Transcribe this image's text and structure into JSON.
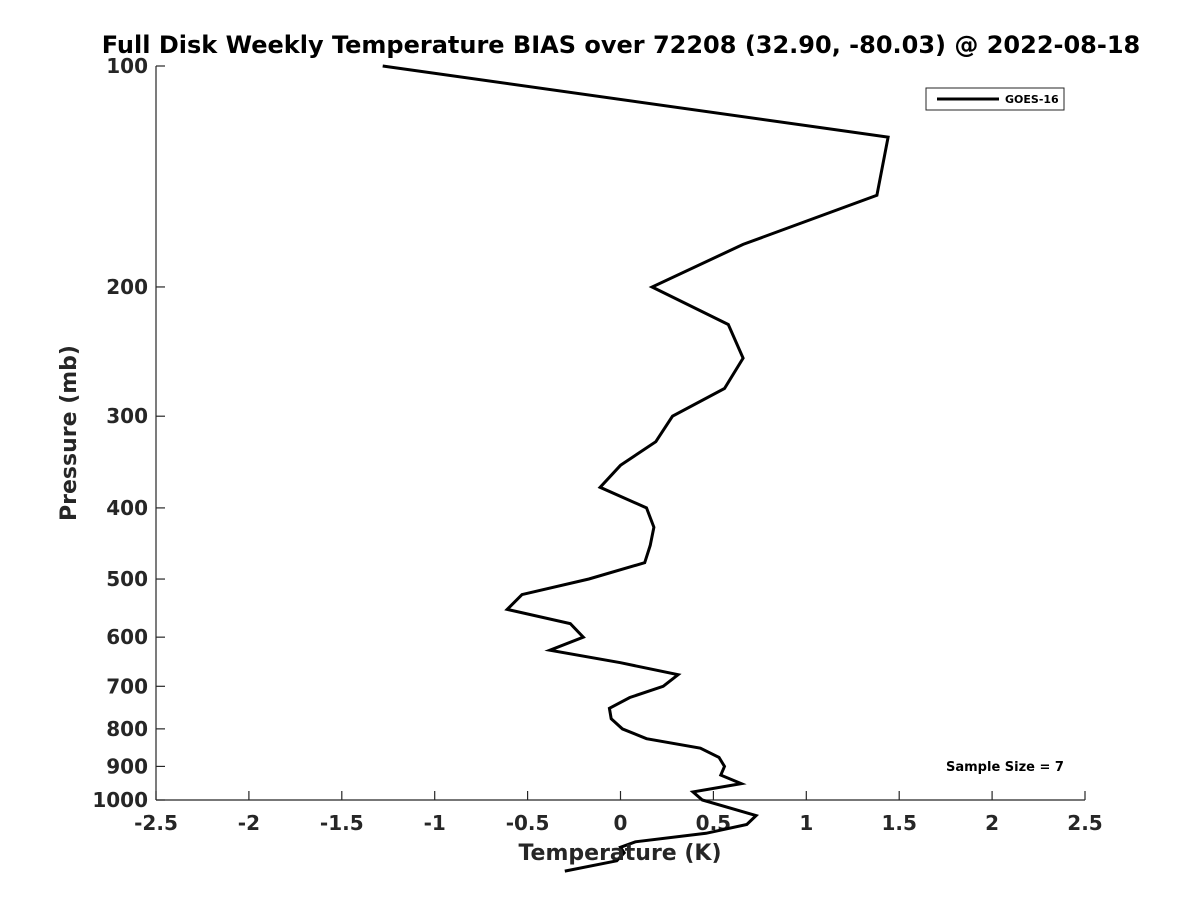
{
  "chart_data": {
    "type": "line",
    "title": "Full Disk Weekly Temperature BIAS over 72208 (32.90, -80.03) @ 2022-08-18",
    "xlabel": "Temperature (K)",
    "ylabel": "Pressure (mb)",
    "xlim": [
      -2.5,
      2.5
    ],
    "ylim": [
      100,
      1000
    ],
    "y_scale": "log",
    "y_reversed": true,
    "x_ticks": [
      "-2.5",
      "-2",
      "-1.5",
      "-1",
      "-0.5",
      "0",
      "0.5",
      "1",
      "1.5",
      "2",
      "2.5"
    ],
    "x_tick_values": [
      -2.5,
      -2,
      -1.5,
      -1,
      -0.5,
      0,
      0.5,
      1,
      1.5,
      2,
      2.5
    ],
    "y_ticks": [
      "100",
      "200",
      "300",
      "400",
      "500",
      "600",
      "700",
      "800",
      "900",
      "1000"
    ],
    "y_tick_values": [
      100,
      200,
      300,
      400,
      500,
      600,
      700,
      800,
      900,
      1000
    ],
    "grid": false,
    "legend_position": "top-right",
    "annotation": "Sample Size = 7",
    "series": [
      {
        "name": "GOES-16",
        "color": "#000000",
        "points": [
          {
            "t": -1.28,
            "p": 100
          },
          {
            "t": 1.44,
            "p": 125
          },
          {
            "t": 1.38,
            "p": 150
          },
          {
            "t": 0.66,
            "p": 175
          },
          {
            "t": 0.17,
            "p": 200
          },
          {
            "t": 0.58,
            "p": 225
          },
          {
            "t": 0.66,
            "p": 250
          },
          {
            "t": 0.56,
            "p": 275
          },
          {
            "t": 0.28,
            "p": 300
          },
          {
            "t": 0.19,
            "p": 325
          },
          {
            "t": 0.0,
            "p": 350
          },
          {
            "t": -0.11,
            "p": 375
          },
          {
            "t": 0.14,
            "p": 400
          },
          {
            "t": 0.18,
            "p": 425
          },
          {
            "t": 0.16,
            "p": 450
          },
          {
            "t": 0.13,
            "p": 475
          },
          {
            "t": -0.17,
            "p": 500
          },
          {
            "t": -0.53,
            "p": 525
          },
          {
            "t": -0.61,
            "p": 550
          },
          {
            "t": -0.27,
            "p": 575
          },
          {
            "t": -0.2,
            "p": 600
          },
          {
            "t": -0.38,
            "p": 625
          },
          {
            "t": 0.0,
            "p": 650
          },
          {
            "t": 0.31,
            "p": 675
          },
          {
            "t": 0.23,
            "p": 700
          },
          {
            "t": 0.05,
            "p": 725
          },
          {
            "t": -0.06,
            "p": 750
          },
          {
            "t": -0.05,
            "p": 775
          },
          {
            "t": 0.01,
            "p": 800
          },
          {
            "t": 0.14,
            "p": 825
          },
          {
            "t": 0.43,
            "p": 850
          },
          {
            "t": 0.53,
            "p": 875
          },
          {
            "t": 0.56,
            "p": 900
          },
          {
            "t": 0.54,
            "p": 925
          },
          {
            "t": 0.65,
            "p": 950
          },
          {
            "t": 0.39,
            "p": 975
          },
          {
            "t": 0.44,
            "p": 1000
          },
          {
            "t": 0.73,
            "p": 1050
          },
          {
            "t": 0.68,
            "p": 1080
          },
          {
            "t": 0.46,
            "p": 1110
          },
          {
            "t": 0.08,
            "p": 1140
          },
          {
            "t": 0.0,
            "p": 1160
          },
          {
            "t": 0.02,
            "p": 1180
          },
          {
            "t": -0.02,
            "p": 1210
          },
          {
            "t": -0.3,
            "p": 1250
          }
        ]
      }
    ]
  }
}
